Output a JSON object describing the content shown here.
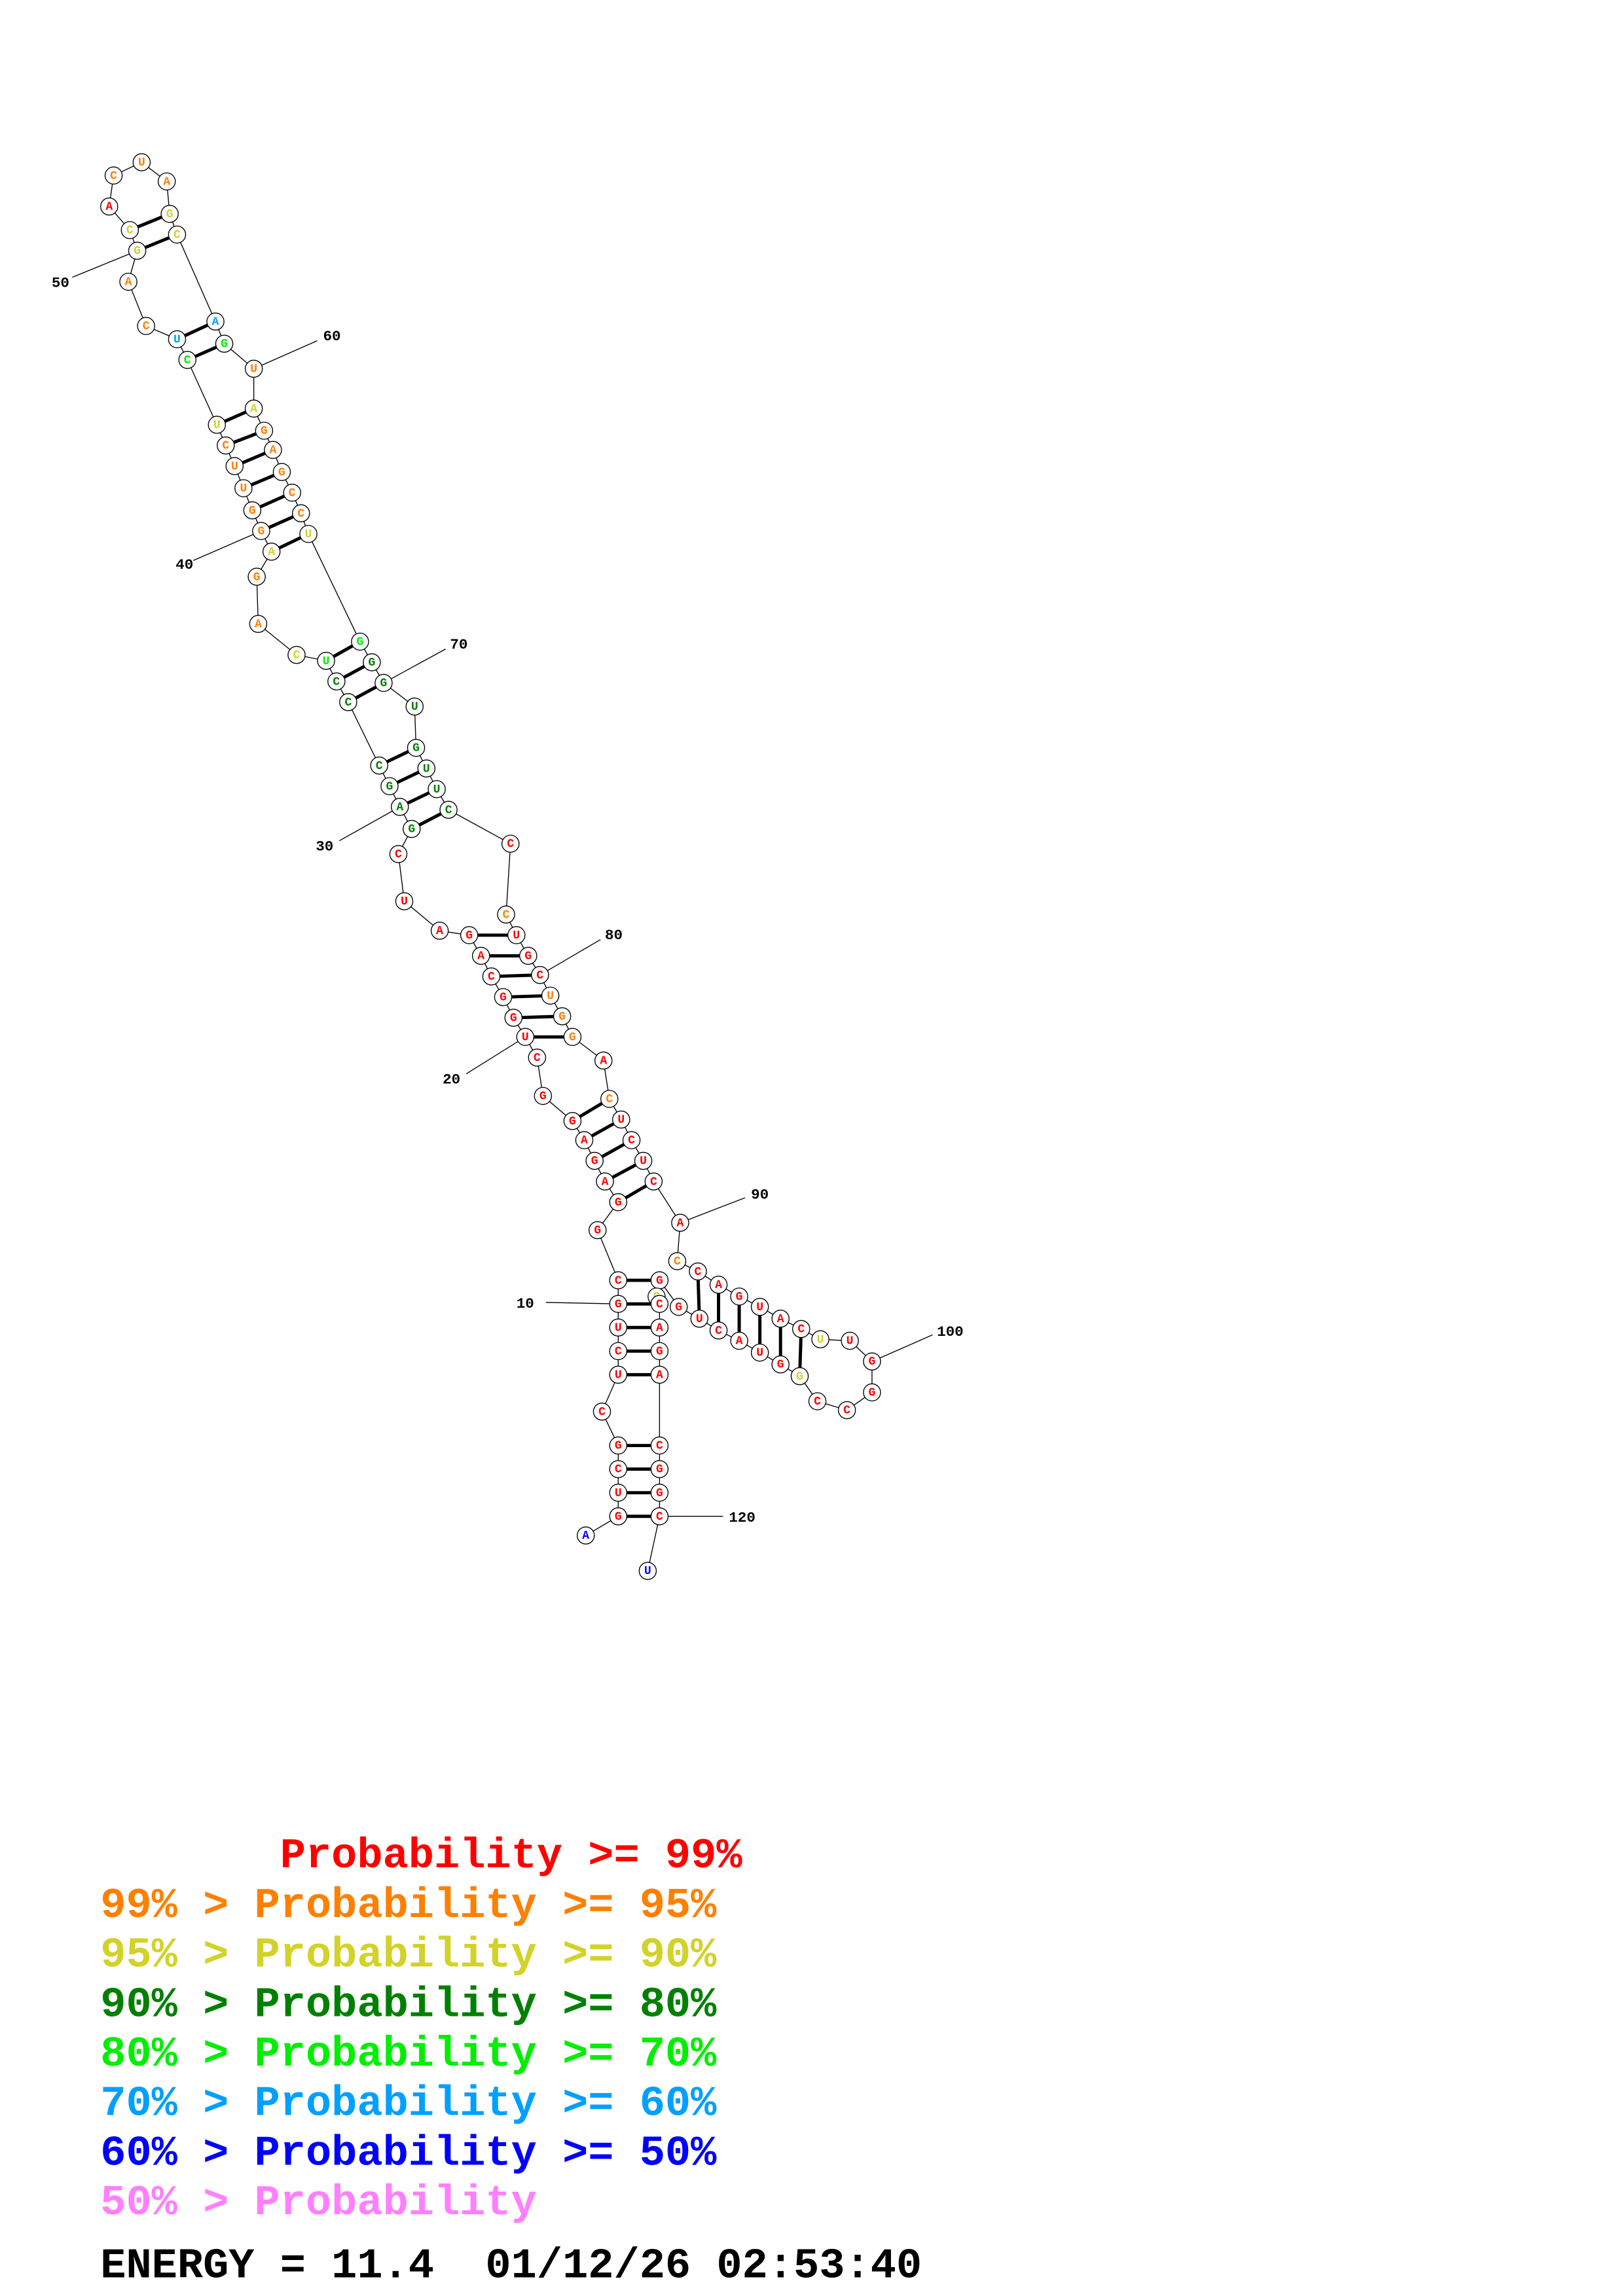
{
  "structure": {
    "bases": [
      "A",
      "G",
      "U",
      "C",
      "G",
      "C",
      "U",
      "C",
      "U",
      "G",
      "C",
      "G",
      "G",
      "A",
      "G",
      "A",
      "G",
      "G",
      "C",
      "U",
      "G",
      "G",
      "C",
      "A",
      "G",
      "A",
      "U",
      "C",
      "G",
      "A",
      "G",
      "C",
      "C",
      "C",
      "U",
      "C",
      "A",
      "G",
      "A",
      "G",
      "G",
      "U",
      "U",
      "C",
      "U",
      "C",
      "U",
      "C",
      "A",
      "G",
      "C",
      "A",
      "C",
      "U",
      "A",
      "G",
      "C",
      "A",
      "G",
      "U",
      "A",
      "G",
      "A",
      "G",
      "C",
      "C",
      "U",
      "G",
      "G",
      "G",
      "U",
      "G",
      "U",
      "U",
      "C",
      "C",
      "C",
      "U",
      "G",
      "C",
      "U",
      "G",
      "G",
      "A",
      "C",
      "U",
      "C",
      "U",
      "C",
      "A",
      "C",
      "C",
      "A",
      "G",
      "U",
      "A",
      "C",
      "U",
      "U",
      "G",
      "G",
      "C",
      "C",
      "G",
      "G",
      "U",
      "A",
      "C",
      "U",
      "G",
      "G",
      "G",
      "C",
      "A",
      "G",
      "A",
      "C",
      "G",
      "G",
      "C",
      "U"
    ],
    "levels": [
      6,
      0,
      0,
      0,
      0,
      0,
      0,
      0,
      0,
      0,
      0,
      0,
      0,
      0,
      0,
      0,
      0,
      0,
      0,
      0,
      0,
      0,
      0,
      0,
      0,
      0,
      0,
      0,
      3,
      3,
      3,
      3,
      3,
      3,
      4,
      2,
      1,
      1,
      2,
      1,
      1,
      1,
      1,
      1,
      2,
      4,
      5,
      1,
      1,
      2,
      2,
      0,
      1,
      1,
      1,
      2,
      2,
      5,
      4,
      1,
      2,
      1,
      1,
      1,
      1,
      1,
      2,
      4,
      3,
      3,
      3,
      3,
      3,
      3,
      3,
      0,
      1,
      0,
      0,
      0,
      1,
      1,
      1,
      0,
      1,
      0,
      0,
      0,
      0,
      0,
      1,
      0,
      0,
      0,
      0,
      0,
      0,
      2,
      0,
      0,
      0,
      0,
      0,
      2,
      0,
      0,
      0,
      0,
      0,
      0,
      0,
      2,
      0,
      0,
      0,
      0,
      0,
      0,
      0,
      0,
      6
    ],
    "position_labels": [
      "10",
      "20",
      "30",
      "40",
      "50",
      "60",
      "70",
      "80",
      "90",
      "100",
      "120"
    ]
  },
  "legend": [
    {
      "text": "       Probability >= 99%",
      "color": "#ff0000"
    },
    {
      "text": "99% > Probability >= 95%",
      "color": "#ff8000"
    },
    {
      "text": "95% > Probability >= 90%",
      "color": "#d2d22a"
    },
    {
      "text": "90% > Probability >= 80%",
      "color": "#008000"
    },
    {
      "text": "80% > Probability >= 70%",
      "color": "#00ee00"
    },
    {
      "text": "70% > Probability >= 60%",
      "color": "#00a0ff"
    },
    {
      "text": "60% > Probability >= 50%",
      "color": "#0000ff"
    },
    {
      "text": "50% > Probability",
      "color": "#ff80ff"
    }
  ],
  "footer": "ENERGY = 11.4  01/12/26 02:53:40"
}
